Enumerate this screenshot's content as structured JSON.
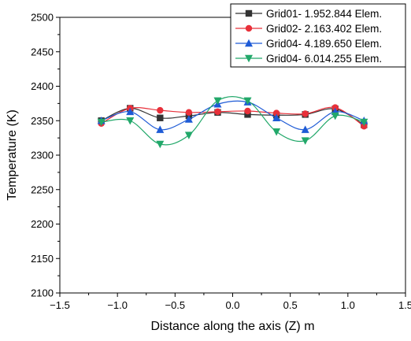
{
  "chart_data": {
    "type": "line",
    "xlabel": "Distance along the axis (Z) m",
    "ylabel": "Temperature (K)",
    "xlim": [
      -1.5,
      1.5
    ],
    "ylim": [
      2100,
      2500
    ],
    "xticks": [
      -1.5,
      -1.0,
      -0.5,
      0.0,
      0.5,
      1.0,
      1.5
    ],
    "xtick_labels": [
      "−1.5",
      "−1.0",
      "−0.5",
      "0.0",
      "0.5",
      "1.0",
      "1.5"
    ],
    "yticks": [
      2100,
      2150,
      2200,
      2250,
      2300,
      2350,
      2400,
      2450,
      2500
    ],
    "ytick_labels": [
      "2100",
      "2150",
      "2200",
      "2250",
      "2300",
      "2350",
      "2400",
      "2450",
      "2500"
    ],
    "legend_position": "top-right",
    "smooth": true,
    "series": [
      {
        "name": "Grid01- 1.952.844 Elem.",
        "color": "#333333",
        "marker": "square",
        "x": [
          -1.14,
          -0.89,
          -0.63,
          -0.38,
          -0.13,
          0.13,
          0.38,
          0.63,
          0.89,
          1.14
        ],
        "y": [
          2350,
          2368,
          2354,
          2357,
          2362,
          2359,
          2358,
          2359,
          2367,
          2344
        ]
      },
      {
        "name": "Grid02- 2.163.402 Elem.",
        "color": "#e8303a",
        "marker": "circle",
        "x": [
          -1.14,
          -0.89,
          -0.63,
          -0.38,
          -0.13,
          0.13,
          0.38,
          0.63,
          0.89,
          1.14
        ],
        "y": [
          2346,
          2368,
          2365,
          2362,
          2363,
          2364,
          2361,
          2360,
          2369,
          2342
        ]
      },
      {
        "name": "Grid04- 4.189.650 Elem.",
        "color": "#1e5bd6",
        "marker": "triangle-up",
        "x": [
          -1.14,
          -0.89,
          -0.63,
          -0.38,
          -0.13,
          0.13,
          0.38,
          0.63,
          0.89,
          1.14
        ],
        "y": [
          2350,
          2363,
          2337,
          2352,
          2374,
          2377,
          2354,
          2337,
          2363,
          2350
        ]
      },
      {
        "name": "Grid04- 6.014.255 Elem.",
        "color": "#22a86a",
        "marker": "triangle-down",
        "x": [
          -1.14,
          -0.89,
          -0.63,
          -0.38,
          -0.13,
          0.13,
          0.38,
          0.63,
          0.89,
          1.14
        ],
        "y": [
          2348,
          2350,
          2316,
          2329,
          2379,
          2379,
          2334,
          2321,
          2357,
          2348
        ]
      }
    ]
  }
}
